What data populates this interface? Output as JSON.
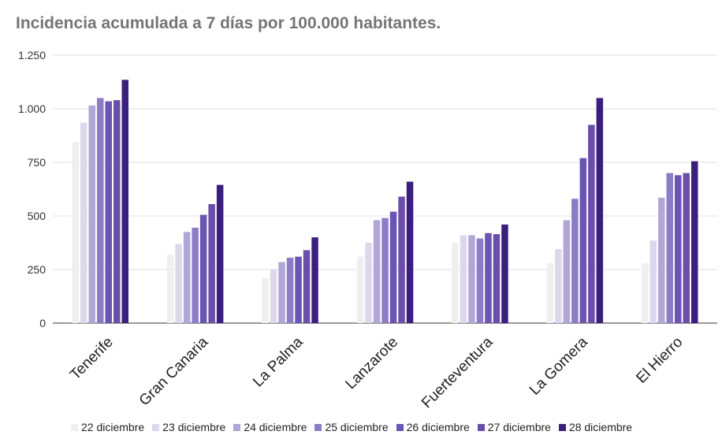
{
  "chart_data": {
    "type": "bar",
    "title": "Incidencia acumulada a 7 días por 100.000 habitantes.",
    "xlabel": "",
    "ylabel": "",
    "ylim": [
      0,
      1250
    ],
    "yticks": [
      0,
      250,
      500,
      750,
      1000,
      1250
    ],
    "ytick_labels": [
      "0",
      "250",
      "500",
      "750",
      "1.000",
      "1.250"
    ],
    "grid": true,
    "legend_position": "bottom",
    "categories": [
      "Tenerife",
      "Gran Canaria",
      "La Palma",
      "Lanzarote",
      "Fuerteventura",
      "La Gomera",
      "El Hierro"
    ],
    "series": [
      {
        "name": "22 diciembre",
        "color": "#efefef",
        "values": [
          845,
          320,
          210,
          310,
          375,
          280,
          280
        ]
      },
      {
        "name": "23 diciembre",
        "color": "#dcd8ec",
        "values": [
          935,
          370,
          250,
          375,
          410,
          345,
          385
        ]
      },
      {
        "name": "24 diciembre",
        "color": "#b1a6d6",
        "values": [
          1015,
          425,
          285,
          480,
          410,
          480,
          585
        ]
      },
      {
        "name": "25 diciembre",
        "color": "#8c7cc6",
        "values": [
          1050,
          445,
          305,
          490,
          395,
          580,
          700
        ]
      },
      {
        "name": "26 diciembre",
        "color": "#6a55b3",
        "values": [
          1035,
          505,
          310,
          520,
          420,
          770,
          690
        ]
      },
      {
        "name": "27 diciembre",
        "color": "#6b4eaa",
        "values": [
          1040,
          555,
          340,
          590,
          415,
          925,
          700
        ]
      },
      {
        "name": "28 diciembre",
        "color": "#3b1f7c",
        "values": [
          1135,
          645,
          400,
          660,
          460,
          1050,
          755
        ]
      }
    ]
  }
}
